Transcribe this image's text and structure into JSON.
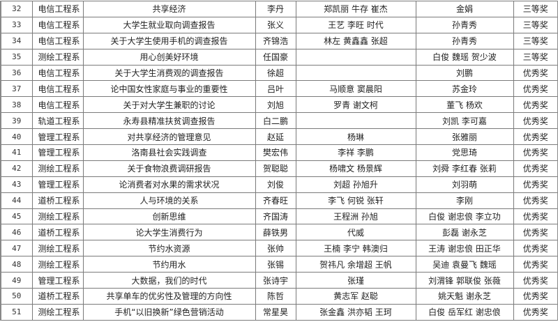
{
  "rows": [
    {
      "no": "32",
      "dept": "电信工程系",
      "title": "共享经济",
      "leader": "李丹",
      "members": "郑凯丽 牛存 崔杰",
      "advisor": "金娟",
      "award": "三等奖"
    },
    {
      "no": "33",
      "dept": "电信工程系",
      "title": "大学生就业取向调查报告",
      "leader": "张义",
      "members": "王艺 李旺 时代",
      "advisor": "孙青秀",
      "award": "三等奖"
    },
    {
      "no": "34",
      "dept": "电信工程系",
      "title": "关于大学生使用手机的调查报告",
      "leader": "齐锦浩",
      "members": "林左 黄鑫鑫 张超",
      "advisor": "孙青秀",
      "award": "三等奖"
    },
    {
      "no": "35",
      "dept": "测绘工程系",
      "title": "用心创美好环境",
      "leader": "任国豪",
      "members": "",
      "advisor": "白俊 魏瑶 贺少波",
      "award": "三等奖"
    },
    {
      "no": "36",
      "dept": "电信工程系",
      "title": "关于大学生消费观的调查报告",
      "leader": "徐超",
      "members": "",
      "advisor": "刘鹏",
      "award": "优秀奖"
    },
    {
      "no": "37",
      "dept": "电信工程系",
      "title": "论中国女性家庭与事业的重要性",
      "leader": "吕叶",
      "members": "马顺意 窦晨阳",
      "advisor": "苏金玲",
      "award": "优秀奖"
    },
    {
      "no": "38",
      "dept": "电信工程系",
      "title": "关于对大学生兼职的讨论",
      "leader": "刘旭",
      "members": "罗青 谢文柯",
      "advisor": "董飞 杨欢",
      "award": "优秀奖"
    },
    {
      "no": "39",
      "dept": "轨道工程系",
      "title": "永寿县精准扶贫调查报告",
      "leader": "白二鹏",
      "members": "",
      "advisor": "刘凯 李可嘉",
      "award": "优秀奖"
    },
    {
      "no": "40",
      "dept": "管理工程系",
      "title": "对共享经济的管理意见",
      "leader": "赵延",
      "members": "杨琳",
      "advisor": "张雅丽",
      "award": "优秀奖"
    },
    {
      "no": "41",
      "dept": "管理工程系",
      "title": "洛南县社会实践调查",
      "leader": "樊宏伟",
      "members": "李祥 李鹏",
      "advisor": "党思琦",
      "award": "优秀奖"
    },
    {
      "no": "42",
      "dept": "测绘工程系",
      "title": "关于食物浪费调研报告",
      "leader": "贺聪聪",
      "members": "杨啸文 杨景辉",
      "advisor": "刘舜 李红春 张莉",
      "award": "优秀奖"
    },
    {
      "no": "43",
      "dept": "管理工程系",
      "title": "论消费者对水果的需求状况",
      "leader": "刘俊",
      "members": "刘超 孙旭升",
      "advisor": "刘羽萌",
      "award": "优秀奖"
    },
    {
      "no": "44",
      "dept": "道桥工程系",
      "title": "人与环境的关系",
      "leader": "齐春旺",
      "members": "李飞 何锐 张轩",
      "advisor": "李刚",
      "award": "优秀奖"
    },
    {
      "no": "45",
      "dept": "测绘工程系",
      "title": "创新思维",
      "leader": "齐国涛",
      "members": "王程洲 孙旭",
      "advisor": "白俊 谢忠俍 李立功",
      "award": "优秀奖"
    },
    {
      "no": "46",
      "dept": "道桥工程系",
      "title": "论大学生消费行为",
      "leader": "薛铁男",
      "members": "代威",
      "advisor": "彭磊 谢永芝",
      "award": "优秀奖"
    },
    {
      "no": "47",
      "dept": "测绘工程系",
      "title": "节约水资源",
      "leader": "张帅",
      "members": "王楠 李宁 韩澳归",
      "advisor": "王涛 谢忠俍 田正华",
      "award": "优秀奖"
    },
    {
      "no": "48",
      "dept": "测绘工程系",
      "title": "节约用水",
      "leader": "张锡",
      "members": "贺祎凡 余增超 王帆",
      "advisor": "吴迪 袁曼飞 魏瑶",
      "award": "优秀奖"
    },
    {
      "no": "49",
      "dept": "管理工程系",
      "title": "大数据，我们的时代",
      "leader": "张诗宇",
      "members": "张瑾",
      "advisor": "刘渭锋 郭联俊 张薇",
      "award": "优秀奖"
    },
    {
      "no": "50",
      "dept": "道桥工程系",
      "title": "共享单车的优劣性及管理的方向性",
      "leader": "陈哲",
      "members": "黄志军 赵聪",
      "advisor": "姚天魁 谢永芝",
      "award": "优秀奖"
    },
    {
      "no": "51",
      "dept": "测绘工程系",
      "title": "手机“以旧换新”绿色营销活动",
      "leader": "常星昊",
      "members": "张金鑫 洪亦韬 王珂",
      "advisor": "白俊 岳军红 谢忠俍",
      "award": "优秀奖"
    }
  ]
}
